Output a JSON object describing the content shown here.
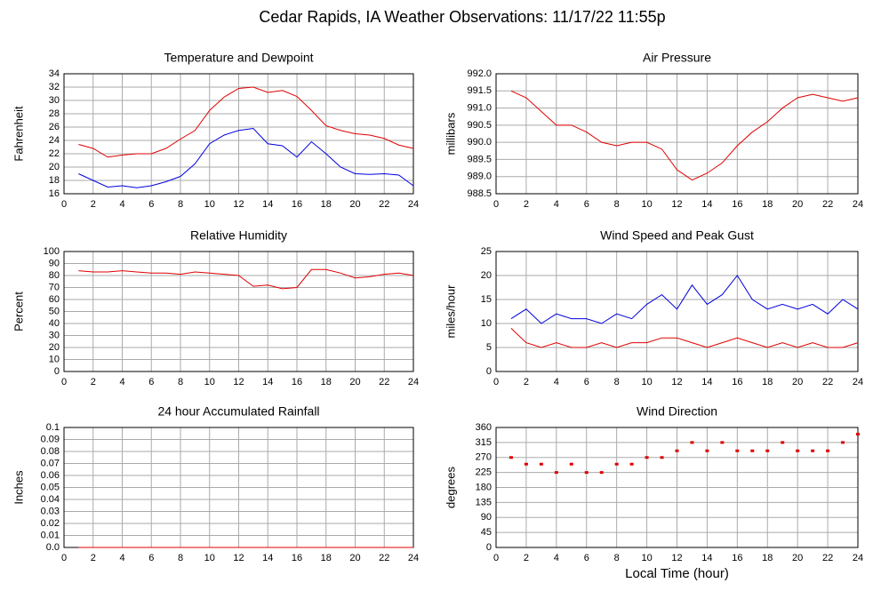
{
  "title": "Cedar Rapids, IA Weather Observations: 11/17/22 11:55p",
  "chart_data": [
    {
      "type": "line",
      "title": "Temperature and Dewpoint",
      "ylabel": "Fahrenheit",
      "x": [
        1,
        2,
        3,
        4,
        5,
        6,
        7,
        8,
        9,
        10,
        11,
        12,
        13,
        14,
        15,
        16,
        17,
        18,
        19,
        20,
        21,
        22,
        23,
        24
      ],
      "xlim": [
        0,
        24
      ],
      "xticks": [
        0,
        2,
        4,
        6,
        8,
        10,
        12,
        14,
        16,
        18,
        20,
        22,
        24
      ],
      "ylim": [
        16,
        34
      ],
      "yticks": [
        16,
        18,
        20,
        22,
        24,
        26,
        28,
        30,
        32,
        34
      ],
      "grid": true,
      "series": [
        {
          "color": "#e00000",
          "values": [
            23.4,
            22.8,
            21.5,
            21.8,
            22.0,
            22.0,
            22.8,
            24.2,
            25.5,
            28.5,
            30.5,
            31.8,
            32.0,
            31.2,
            31.5,
            30.6,
            28.5,
            26.2,
            25.5,
            25.0,
            24.8,
            24.3,
            23.3,
            22.8
          ]
        },
        {
          "color": "#0000e0",
          "values": [
            19.0,
            18.0,
            17.0,
            17.2,
            16.9,
            17.2,
            17.8,
            18.6,
            20.5,
            23.5,
            24.8,
            25.5,
            25.8,
            23.5,
            23.2,
            21.5,
            23.8,
            22.0,
            20.0,
            19.0,
            18.9,
            19.0,
            18.8,
            17.2
          ]
        }
      ]
    },
    {
      "type": "line",
      "title": "Air Pressure",
      "ylabel": "millibars",
      "x": [
        1,
        2,
        3,
        4,
        5,
        6,
        7,
        8,
        9,
        10,
        11,
        12,
        13,
        14,
        15,
        16,
        17,
        18,
        19,
        20,
        21,
        22,
        23,
        24
      ],
      "xlim": [
        0,
        24
      ],
      "xticks": [
        0,
        2,
        4,
        6,
        8,
        10,
        12,
        14,
        16,
        18,
        20,
        22,
        24
      ],
      "ylim": [
        988.5,
        992.0
      ],
      "yticks": [
        988.5,
        {
          "value": 989,
          "label": "989.0"
        },
        989.5,
        {
          "value": 990,
          "label": "990.0"
        },
        990.5,
        {
          "value": 991,
          "label": "991.0"
        },
        991.5,
        {
          "value": 992,
          "label": "992.0"
        }
      ],
      "grid": true,
      "series": [
        {
          "color": "#e00000",
          "values": [
            991.5,
            991.3,
            990.9,
            990.5,
            990.5,
            990.3,
            990.0,
            989.9,
            990.0,
            990.0,
            989.8,
            989.2,
            988.9,
            989.1,
            989.4,
            989.9,
            990.3,
            990.6,
            991.0,
            991.3,
            991.4,
            991.3,
            991.2,
            991.3
          ]
        }
      ]
    },
    {
      "type": "line",
      "title": "Relative Humidity",
      "ylabel": "Percent",
      "x": [
        1,
        2,
        3,
        4,
        5,
        6,
        7,
        8,
        9,
        10,
        11,
        12,
        13,
        14,
        15,
        16,
        17,
        18,
        19,
        20,
        21,
        22,
        23,
        24
      ],
      "xlim": [
        0,
        24
      ],
      "xticks": [
        0,
        2,
        4,
        6,
        8,
        10,
        12,
        14,
        16,
        18,
        20,
        22,
        24
      ],
      "ylim": [
        0,
        100
      ],
      "yticks": [
        0,
        10,
        20,
        30,
        40,
        50,
        60,
        70,
        80,
        90,
        100
      ],
      "grid": true,
      "series": [
        {
          "color": "#e00000",
          "values": [
            84,
            83,
            83,
            84,
            83,
            82,
            82,
            81,
            83,
            82,
            81,
            80,
            71,
            72,
            69,
            70,
            85,
            85,
            82,
            78,
            79,
            81,
            82,
            80
          ]
        }
      ]
    },
    {
      "type": "line",
      "title": "Wind Speed and Peak Gust",
      "ylabel": "miles/hour",
      "x": [
        1,
        2,
        3,
        4,
        5,
        6,
        7,
        8,
        9,
        10,
        11,
        12,
        13,
        14,
        15,
        16,
        17,
        18,
        19,
        20,
        21,
        22,
        23,
        24
      ],
      "xlim": [
        0,
        24
      ],
      "xticks": [
        0,
        2,
        4,
        6,
        8,
        10,
        12,
        14,
        16,
        18,
        20,
        22,
        24
      ],
      "ylim": [
        0,
        25
      ],
      "yticks": [
        0,
        5,
        10,
        15,
        20,
        25
      ],
      "grid": true,
      "series": [
        {
          "color": "#e00000",
          "values": [
            9,
            6,
            5,
            6,
            5,
            5,
            6,
            5,
            6,
            6,
            7,
            7,
            6,
            5,
            6,
            7,
            6,
            5,
            6,
            5,
            6,
            5,
            5,
            6
          ]
        },
        {
          "color": "#0000e0",
          "values": [
            11,
            13,
            10,
            12,
            11,
            11,
            10,
            12,
            11,
            14,
            16,
            13,
            18,
            14,
            16,
            20,
            15,
            13,
            14,
            13,
            14,
            12,
            15,
            13
          ]
        }
      ]
    },
    {
      "type": "line",
      "title": "24 hour Accumulated Rainfall",
      "ylabel": "Inches",
      "x": [
        1,
        2,
        3,
        4,
        5,
        6,
        7,
        8,
        9,
        10,
        11,
        12,
        13,
        14,
        15,
        16,
        17,
        18,
        19,
        20,
        21,
        22,
        23,
        24
      ],
      "xlim": [
        0,
        24
      ],
      "xticks": [
        0,
        2,
        4,
        6,
        8,
        10,
        12,
        14,
        16,
        18,
        20,
        22,
        24
      ],
      "ylim": [
        0,
        0.1
      ],
      "yticks": [
        {
          "value": 0,
          "label": "0.0"
        },
        0.01,
        0.02,
        0.03,
        0.04,
        0.05,
        0.06,
        0.07,
        0.08,
        0.09,
        0.1
      ],
      "grid": true,
      "series": [
        {
          "color": "#e00000",
          "values": [
            0,
            0,
            0,
            0,
            0,
            0,
            0,
            0,
            0,
            0,
            0,
            0,
            0,
            0,
            0,
            0,
            0,
            0,
            0,
            0,
            0,
            0,
            0,
            0
          ]
        }
      ]
    },
    {
      "type": "scatter",
      "title": "Wind Direction",
      "ylabel": "degrees",
      "xlabel": "Local Time (hour)",
      "x": [
        1,
        2,
        3,
        4,
        5,
        6,
        7,
        8,
        9,
        10,
        11,
        12,
        13,
        14,
        15,
        16,
        17,
        18,
        19,
        20,
        21,
        22,
        23,
        24
      ],
      "xlim": [
        0,
        24
      ],
      "xticks": [
        0,
        2,
        4,
        6,
        8,
        10,
        12,
        14,
        16,
        18,
        20,
        22,
        24
      ],
      "ylim": [
        0,
        360
      ],
      "yticks": [
        0,
        45,
        90,
        135,
        180,
        225,
        270,
        315,
        360
      ],
      "grid": true,
      "series": [
        {
          "color": "#e00000",
          "values": [
            270,
            250,
            250,
            225,
            250,
            225,
            225,
            250,
            250,
            270,
            270,
            290,
            315,
            290,
            315,
            290,
            290,
            290,
            315,
            290,
            290,
            290,
            315,
            340
          ]
        }
      ]
    }
  ]
}
